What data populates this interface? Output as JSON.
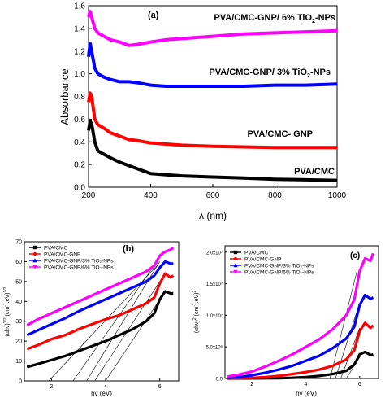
{
  "chart_data": [
    {
      "type": "line",
      "panel_label": "(a)",
      "xlabel": "λ (nm)",
      "ylabel": "Absorbance",
      "xlim": [
        200,
        1000
      ],
      "ylim": [
        0,
        1.6
      ],
      "xticks": [
        200,
        400,
        600,
        800,
        1000
      ],
      "yticks": [
        0.0,
        0.2,
        0.4,
        0.6,
        0.8,
        1.0,
        1.2,
        1.4,
        1.6
      ],
      "ytick_labels": [
        "0.0",
        "0.2",
        "0.4",
        "0.6",
        "0.8",
        "1.0",
        "1.2",
        "1.4",
        "1.6"
      ],
      "x": [
        200,
        205,
        210,
        220,
        230,
        250,
        270,
        300,
        330,
        360,
        380,
        400,
        450,
        500,
        600,
        700,
        800,
        900,
        1000
      ],
      "series": [
        {
          "name": "PVA/CMC",
          "color": "#000000",
          "label_text": "PVA/CMC",
          "values": [
            0.5,
            0.58,
            0.56,
            0.4,
            0.32,
            0.29,
            0.26,
            0.22,
            0.19,
            0.16,
            0.14,
            0.12,
            0.11,
            0.1,
            0.09,
            0.08,
            0.07,
            0.065,
            0.06
          ]
        },
        {
          "name": "PVA/CMC- GNP",
          "color": "#ff0000",
          "label_text": "PVA/CMC- GNP",
          "values": [
            0.75,
            0.83,
            0.8,
            0.6,
            0.55,
            0.52,
            0.48,
            0.45,
            0.42,
            0.41,
            0.4,
            0.39,
            0.38,
            0.37,
            0.36,
            0.355,
            0.35,
            0.35,
            0.35
          ]
        },
        {
          "name": "PVA/CMC-GNP/ 3% TiO2-NPs",
          "color": "#0000ff",
          "label_text": "PVA/CMC-GNP/ 3% TiO",
          "label_sub": "2",
          "label_tail": "-NPs",
          "values": [
            1.15,
            1.27,
            1.2,
            1.05,
            1.0,
            0.97,
            0.95,
            0.93,
            0.93,
            0.92,
            0.91,
            0.9,
            0.89,
            0.89,
            0.89,
            0.89,
            0.9,
            0.9,
            0.91
          ]
        },
        {
          "name": "PVA/CMC-GNP/ 6% TiO2-NPs",
          "color": "#ff00ff",
          "label_text": "PVA/CMC-GNP/ 6% TiO",
          "label_sub": "2",
          "label_tail": "-NPs",
          "values": [
            1.5,
            1.55,
            1.5,
            1.4,
            1.36,
            1.33,
            1.3,
            1.28,
            1.25,
            1.26,
            1.27,
            1.28,
            1.3,
            1.31,
            1.33,
            1.35,
            1.36,
            1.37,
            1.38
          ]
        }
      ]
    },
    {
      "type": "line",
      "panel_label": "(b)",
      "xlabel": "hv (eV)",
      "ylabel": "(αhν)^1/2 (cm^-1.eV)^1/2",
      "xlim": [
        1,
        6.7
      ],
      "ylim": [
        0,
        70
      ],
      "xticks": [
        2,
        4,
        6
      ],
      "yticks": [
        0,
        10,
        20,
        30,
        40,
        50,
        60,
        70
      ],
      "x": [
        1.1,
        1.5,
        2.0,
        2.5,
        3.0,
        3.5,
        4.0,
        4.5,
        5.0,
        5.5,
        5.8,
        6.0,
        6.2,
        6.4,
        6.5
      ],
      "series": [
        {
          "name": "PVA/CMC",
          "legend": "PVA/CMC",
          "color": "#000000",
          "marker": "square",
          "values": [
            7,
            8.5,
            10.5,
            12.5,
            15,
            17.5,
            20,
            23,
            26,
            30,
            34,
            41,
            45,
            44,
            44
          ]
        },
        {
          "name": "PVA/CMC-GNP",
          "legend": "PVA/CMC-GNP",
          "color": "#ff0000",
          "marker": "circle",
          "values": [
            16,
            18,
            21,
            23,
            26,
            28.5,
            31,
            33,
            36,
            39,
            42,
            49,
            54,
            52,
            53
          ]
        },
        {
          "name": "PVA/CMC-GNP/3% TiO2-NPs",
          "legend": "PVA/CMC-GNP/3% TiO₂-NPs",
          "color": "#0000ff",
          "marker": "triangle-up",
          "values": [
            23,
            25.5,
            28.5,
            31.5,
            35,
            38,
            41,
            44,
            47,
            50,
            53,
            57,
            60,
            59,
            59
          ]
        },
        {
          "name": "PVA/CMC-GNP/6% TiO2-NPs",
          "legend": "PVA/CMC-GNP/6% TiO₂-NPs",
          "color": "#ff00ff",
          "marker": "triangle-down",
          "values": [
            28,
            31,
            34,
            37,
            40,
            43,
            46,
            49,
            52,
            55,
            58,
            63,
            65,
            66,
            67
          ]
        }
      ]
    },
    {
      "type": "line",
      "panel_label": "(c)",
      "xlabel": "hv (eV)",
      "ylabel": "(αhν)^2 (cm^-1.eV)^2",
      "xlim": [
        1,
        6.7
      ],
      "ylim": [
        0,
        21000000.0
      ],
      "xticks": [
        2,
        4,
        6
      ],
      "yticks": [
        0.0,
        5000000.0,
        10000000.0,
        15000000.0,
        20000000.0
      ],
      "ytick_labels": [
        "0.0",
        "5.0x10⁶",
        "1.0x10⁷",
        "1.5x10⁷",
        "2.0x10⁷"
      ],
      "x": [
        1.1,
        1.5,
        2.0,
        2.5,
        3.0,
        3.5,
        4.0,
        4.5,
        5.0,
        5.5,
        5.8,
        6.0,
        6.2,
        6.4,
        6.5
      ],
      "series": [
        {
          "name": "PVA/CMC",
          "legend": "PVA/CMC",
          "color": "#000000",
          "marker": "square",
          "values": [
            0,
            0,
            10000.0,
            30000.0,
            50000.0,
            100000.0,
            200000.0,
            400000.0,
            700000.0,
            1200000.0,
            2200000.0,
            3800000.0,
            4200000.0,
            3700000.0,
            3800000.0
          ]
        },
        {
          "name": "PVA/CMC-GNP",
          "legend": "PVA/CMC-GNP",
          "color": "#ff0000",
          "marker": "circle",
          "values": [
            0,
            20000.0,
            80000.0,
            200000.0,
            400000.0,
            700000.0,
            1000000.0,
            1400000.0,
            2000000.0,
            3000000.0,
            4500000.0,
            7500000.0,
            8800000.0,
            8000000.0,
            8400000.0
          ]
        },
        {
          "name": "PVA/CMC-GNP/3% TiO2-NPs",
          "legend": "PVA/CMC-GNP/3% TiO₂-NPs",
          "color": "#0000ff",
          "marker": "triangle-up",
          "values": [
            100000.0,
            200000.0,
            500000.0,
            900000.0,
            1400000.0,
            2000000.0,
            2800000.0,
            3600000.0,
            4800000.0,
            6300000.0,
            8200000.0,
            11600000.0,
            13200000.0,
            12600000.0,
            12800000.0
          ]
        },
        {
          "name": "PVA/CMC-GNP/6% TiO2-NPs",
          "legend": "PVA/CMC-GNP/6% TiO₂-NPs",
          "color": "#ff00ff",
          "marker": "triangle-down",
          "values": [
            300000.0,
            600000.0,
            1100000.0,
            1900000.0,
            2800000.0,
            3800000.0,
            5000000.0,
            6200000.0,
            7800000.0,
            10000000.0,
            12500000.0,
            17000000.0,
            19000000.0,
            18600000.0,
            19800000.0
          ]
        }
      ]
    }
  ]
}
